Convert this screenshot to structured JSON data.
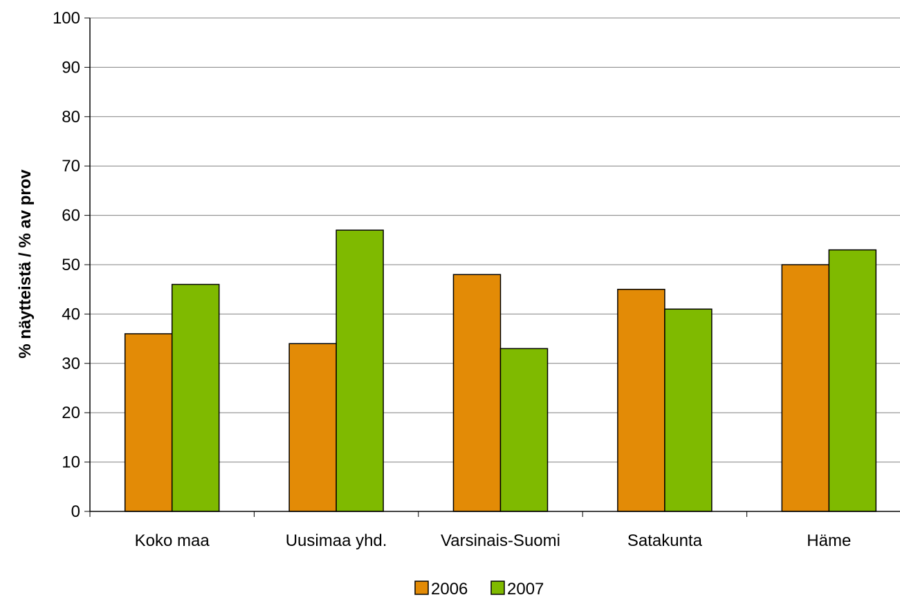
{
  "chart_data": {
    "type": "bar",
    "ylabel": "% näytteistä / % av prov",
    "xlabel": "",
    "ylim": [
      0,
      100
    ],
    "yticks": [
      0,
      10,
      20,
      30,
      40,
      50,
      60,
      70,
      80,
      90,
      100
    ],
    "grid": true,
    "legend_position": "bottom",
    "categories": [
      "Koko maa",
      "Uusimaa yhd.",
      "Varsinais-Suomi",
      "Satakunta",
      "Häme"
    ],
    "series": [
      {
        "name": "2006",
        "color": "#E38B06",
        "values": [
          36,
          34,
          48,
          45,
          50
        ]
      },
      {
        "name": "2007",
        "color": "#7FBA00",
        "values": [
          46,
          57,
          33,
          41,
          53
        ]
      }
    ]
  }
}
